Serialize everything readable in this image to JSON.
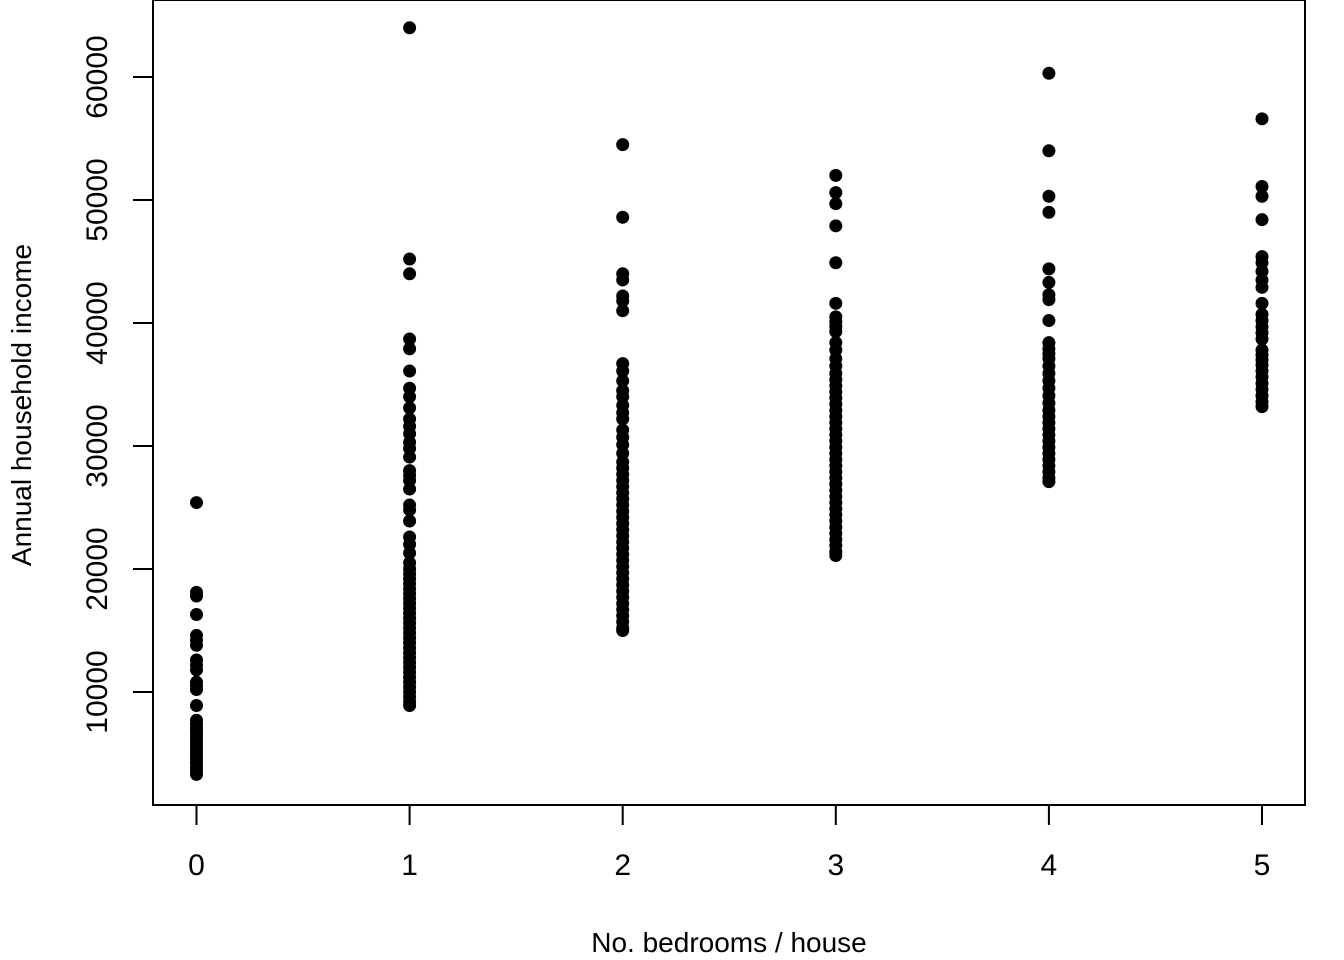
{
  "chart_data": {
    "type": "scatter",
    "title": "",
    "xlabel": "No. bedrooms / house",
    "ylabel": "Annual household income",
    "xlim": [
      -0.2,
      5.2
    ],
    "ylim": [
      1500,
      65500
    ],
    "x_ticks": [
      "0",
      "1",
      "2",
      "3",
      "4",
      "5"
    ],
    "y_ticks": [
      "10000",
      "20000",
      "30000",
      "40000",
      "50000",
      "60000"
    ],
    "grid": false,
    "legend": "none",
    "marker_color": "#000000",
    "series": [
      {
        "points": [
          [
            0,
            25400
          ],
          [
            0,
            18100
          ],
          [
            0,
            17800
          ],
          [
            0,
            16300
          ],
          [
            0,
            14600
          ],
          [
            0,
            14200
          ],
          [
            0,
            13800
          ],
          [
            0,
            12600
          ],
          [
            0,
            12200
          ],
          [
            0,
            11800
          ],
          [
            0,
            10800
          ],
          [
            0,
            10500
          ],
          [
            0,
            10200
          ],
          [
            0,
            8900
          ],
          [
            0,
            7700
          ],
          [
            0,
            7400
          ],
          [
            0,
            7100
          ],
          [
            0,
            6900
          ],
          [
            0,
            6600
          ],
          [
            0,
            6300
          ],
          [
            0,
            6000
          ],
          [
            0,
            5700
          ],
          [
            0,
            5400
          ],
          [
            0,
            5100
          ],
          [
            0,
            4800
          ],
          [
            0,
            4500
          ],
          [
            0,
            4200
          ],
          [
            0,
            3900
          ],
          [
            0,
            3600
          ],
          [
            0,
            3300
          ],
          [
            1,
            64000
          ],
          [
            1,
            45200
          ],
          [
            1,
            44000
          ],
          [
            1,
            38700
          ],
          [
            1,
            37900
          ],
          [
            1,
            36100
          ],
          [
            1,
            34700
          ],
          [
            1,
            34000
          ],
          [
            1,
            33100
          ],
          [
            1,
            32200
          ],
          [
            1,
            31600
          ],
          [
            1,
            31000
          ],
          [
            1,
            30300
          ],
          [
            1,
            29800
          ],
          [
            1,
            29100
          ],
          [
            1,
            28000
          ],
          [
            1,
            27600
          ],
          [
            1,
            27200
          ],
          [
            1,
            26500
          ],
          [
            1,
            25200
          ],
          [
            1,
            24800
          ],
          [
            1,
            23900
          ],
          [
            1,
            22600
          ],
          [
            1,
            22000
          ],
          [
            1,
            21300
          ],
          [
            1,
            20500
          ],
          [
            1,
            20000
          ],
          [
            1,
            19600
          ],
          [
            1,
            19200
          ],
          [
            1,
            18800
          ],
          [
            1,
            18400
          ],
          [
            1,
            18000
          ],
          [
            1,
            17600
          ],
          [
            1,
            17200
          ],
          [
            1,
            16800
          ],
          [
            1,
            16400
          ],
          [
            1,
            16000
          ],
          [
            1,
            15600
          ],
          [
            1,
            15200
          ],
          [
            1,
            14800
          ],
          [
            1,
            14400
          ],
          [
            1,
            14000
          ],
          [
            1,
            13600
          ],
          [
            1,
            13200
          ],
          [
            1,
            12800
          ],
          [
            1,
            12400
          ],
          [
            1,
            12000
          ],
          [
            1,
            11600
          ],
          [
            1,
            11200
          ],
          [
            1,
            10800
          ],
          [
            1,
            10400
          ],
          [
            1,
            10000
          ],
          [
            1,
            9600
          ],
          [
            1,
            9200
          ],
          [
            1,
            8900
          ],
          [
            2,
            54500
          ],
          [
            2,
            48600
          ],
          [
            2,
            44000
          ],
          [
            2,
            43500
          ],
          [
            2,
            42200
          ],
          [
            2,
            41800
          ],
          [
            2,
            41000
          ],
          [
            2,
            36700
          ],
          [
            2,
            36100
          ],
          [
            2,
            35300
          ],
          [
            2,
            34500
          ],
          [
            2,
            34000
          ],
          [
            2,
            33300
          ],
          [
            2,
            32700
          ],
          [
            2,
            32200
          ],
          [
            2,
            31300
          ],
          [
            2,
            30700
          ],
          [
            2,
            30100
          ],
          [
            2,
            29400
          ],
          [
            2,
            28700
          ],
          [
            2,
            28200
          ],
          [
            2,
            27700
          ],
          [
            2,
            27200
          ],
          [
            2,
            26700
          ],
          [
            2,
            26200
          ],
          [
            2,
            25700
          ],
          [
            2,
            25200
          ],
          [
            2,
            24700
          ],
          [
            2,
            24200
          ],
          [
            2,
            23700
          ],
          [
            2,
            23200
          ],
          [
            2,
            22700
          ],
          [
            2,
            22200
          ],
          [
            2,
            21700
          ],
          [
            2,
            21200
          ],
          [
            2,
            20700
          ],
          [
            2,
            20200
          ],
          [
            2,
            19700
          ],
          [
            2,
            19200
          ],
          [
            2,
            18700
          ],
          [
            2,
            18200
          ],
          [
            2,
            17700
          ],
          [
            2,
            17200
          ],
          [
            2,
            16700
          ],
          [
            2,
            16200
          ],
          [
            2,
            15700
          ],
          [
            2,
            15200
          ],
          [
            2,
            15000
          ],
          [
            3,
            52000
          ],
          [
            3,
            50600
          ],
          [
            3,
            49700
          ],
          [
            3,
            47900
          ],
          [
            3,
            44900
          ],
          [
            3,
            41600
          ],
          [
            3,
            40500
          ],
          [
            3,
            40100
          ],
          [
            3,
            39700
          ],
          [
            3,
            39300
          ],
          [
            3,
            38400
          ],
          [
            3,
            37800
          ],
          [
            3,
            37100
          ],
          [
            3,
            36500
          ],
          [
            3,
            35900
          ],
          [
            3,
            35400
          ],
          [
            3,
            34900
          ],
          [
            3,
            34400
          ],
          [
            3,
            33900
          ],
          [
            3,
            33400
          ],
          [
            3,
            32900
          ],
          [
            3,
            32400
          ],
          [
            3,
            31900
          ],
          [
            3,
            31400
          ],
          [
            3,
            30900
          ],
          [
            3,
            30400
          ],
          [
            3,
            29900
          ],
          [
            3,
            29400
          ],
          [
            3,
            28900
          ],
          [
            3,
            28400
          ],
          [
            3,
            27900
          ],
          [
            3,
            27400
          ],
          [
            3,
            26900
          ],
          [
            3,
            26400
          ],
          [
            3,
            25900
          ],
          [
            3,
            25400
          ],
          [
            3,
            24900
          ],
          [
            3,
            24400
          ],
          [
            3,
            23900
          ],
          [
            3,
            23400
          ],
          [
            3,
            22900
          ],
          [
            3,
            22400
          ],
          [
            3,
            21900
          ],
          [
            3,
            21400
          ],
          [
            3,
            21100
          ],
          [
            4,
            60300
          ],
          [
            4,
            54000
          ],
          [
            4,
            50300
          ],
          [
            4,
            49000
          ],
          [
            4,
            44400
          ],
          [
            4,
            43300
          ],
          [
            4,
            42300
          ],
          [
            4,
            41900
          ],
          [
            4,
            40200
          ],
          [
            4,
            38400
          ],
          [
            4,
            37900
          ],
          [
            4,
            37500
          ],
          [
            4,
            37100
          ],
          [
            4,
            36500
          ],
          [
            4,
            35900
          ],
          [
            4,
            35300
          ],
          [
            4,
            34700
          ],
          [
            4,
            34100
          ],
          [
            4,
            33500
          ],
          [
            4,
            32900
          ],
          [
            4,
            32400
          ],
          [
            4,
            31900
          ],
          [
            4,
            31400
          ],
          [
            4,
            30900
          ],
          [
            4,
            30400
          ],
          [
            4,
            29900
          ],
          [
            4,
            29400
          ],
          [
            4,
            28900
          ],
          [
            4,
            28400
          ],
          [
            4,
            27900
          ],
          [
            4,
            27400
          ],
          [
            4,
            27100
          ],
          [
            5,
            56600
          ],
          [
            5,
            51100
          ],
          [
            5,
            50300
          ],
          [
            5,
            48400
          ],
          [
            5,
            45400
          ],
          [
            5,
            44900
          ],
          [
            5,
            44200
          ],
          [
            5,
            43500
          ],
          [
            5,
            42900
          ],
          [
            5,
            41600
          ],
          [
            5,
            40700
          ],
          [
            5,
            40200
          ],
          [
            5,
            39700
          ],
          [
            5,
            39200
          ],
          [
            5,
            38700
          ],
          [
            5,
            37800
          ],
          [
            5,
            37400
          ],
          [
            5,
            37000
          ],
          [
            5,
            36600
          ],
          [
            5,
            36100
          ],
          [
            5,
            35600
          ],
          [
            5,
            35100
          ],
          [
            5,
            34600
          ],
          [
            5,
            34100
          ],
          [
            5,
            33600
          ],
          [
            5,
            33200
          ]
        ]
      }
    ]
  }
}
